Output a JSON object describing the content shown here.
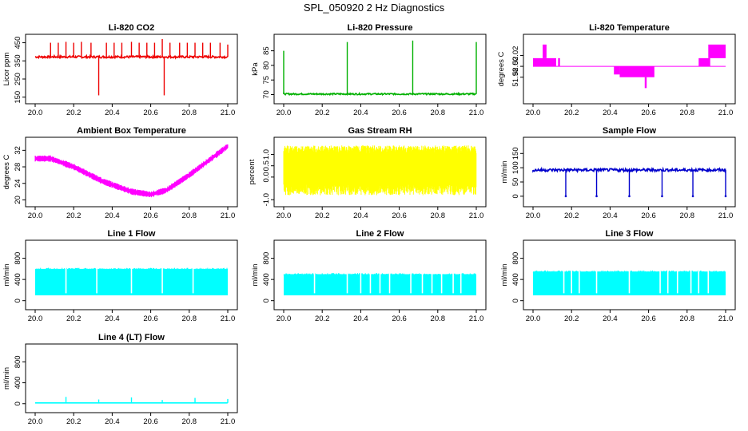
{
  "figure_title": "SPL_050920  2 Hz Diagnostics",
  "chart_data": [
    {
      "type": "line",
      "title": "Li-820 CO2",
      "ylabel": "Licor ppm",
      "color": "#ee0000",
      "xlim": [
        20.0,
        21.0
      ],
      "ylim": [
        140,
        470
      ],
      "x_ticks": [
        "20.0",
        "20.2",
        "20.4",
        "20.6",
        "20.8",
        "21.0"
      ],
      "y_ticks": [
        150,
        250,
        350,
        450
      ],
      "baseline": 372,
      "noise": 6,
      "spikes": [
        [
          20.08,
          450
        ],
        [
          20.12,
          450
        ],
        [
          20.16,
          455
        ],
        [
          20.2,
          450
        ],
        [
          20.24,
          455
        ],
        [
          20.29,
          450
        ],
        [
          20.33,
          160
        ],
        [
          20.37,
          450
        ],
        [
          20.41,
          450
        ],
        [
          20.45,
          450
        ],
        [
          20.5,
          455
        ],
        [
          20.54,
          450
        ],
        [
          20.58,
          450
        ],
        [
          20.62,
          450
        ],
        [
          20.66,
          470
        ],
        [
          20.67,
          160
        ],
        [
          20.7,
          450
        ],
        [
          20.75,
          450
        ],
        [
          20.79,
          450
        ],
        [
          20.83,
          450
        ],
        [
          20.87,
          450
        ],
        [
          20.91,
          450
        ],
        [
          20.96,
          450
        ],
        [
          21.0,
          440
        ]
      ]
    },
    {
      "type": "line",
      "title": "Li-820 Pressure",
      "ylabel": "kPa",
      "color": "#00b000",
      "xlim": [
        20.0,
        21.0
      ],
      "ylim": [
        68.5,
        89
      ],
      "x_ticks": [
        "20.0",
        "20.2",
        "20.4",
        "20.6",
        "20.8",
        "21.0"
      ],
      "y_ticks": [
        70,
        75,
        80,
        85
      ],
      "baseline": 70.2,
      "noise": 0.25,
      "spikes": [
        [
          20.0,
          85
        ],
        [
          20.33,
          88
        ],
        [
          20.67,
          88.5
        ],
        [
          21.0,
          88
        ]
      ]
    },
    {
      "type": "step",
      "title": "Li-820 Temperature",
      "ylabel": "degrees C",
      "color": "#ff00ff",
      "xlim": [
        20.0,
        21.0
      ],
      "ylim": [
        51.94,
        52.05
      ],
      "x_ticks": [
        "20.0",
        "20.2",
        "20.4",
        "20.6",
        "20.8",
        "21.0"
      ],
      "y_ticks": [
        51.98,
        52.0,
        52.02
      ],
      "y_tick_labels": [
        "51.98",
        "52.00",
        "52.02"
      ],
      "base_level": 52.0,
      "bands": [
        [
          20.0,
          20.12,
          52.0,
          52.015
        ],
        [
          20.05,
          20.07,
          52.015,
          52.04
        ],
        [
          20.13,
          20.14,
          52.0,
          52.015
        ],
        [
          20.42,
          20.45,
          51.985,
          52.0
        ],
        [
          20.45,
          20.63,
          51.98,
          52.0
        ],
        [
          20.58,
          20.59,
          51.96,
          51.98
        ],
        [
          20.86,
          20.92,
          52.0,
          52.015
        ],
        [
          20.91,
          21.0,
          52.015,
          52.04
        ]
      ]
    },
    {
      "type": "line",
      "title": "Ambient Box Temperature",
      "ylabel": "degrees C",
      "color": "#ff00ff",
      "xlim": [
        20.0,
        21.0
      ],
      "ylim": [
        19.5,
        34
      ],
      "x_ticks": [
        "20.0",
        "20.2",
        "20.4",
        "20.6",
        "20.8",
        "21.0"
      ],
      "y_ticks": [
        20,
        24,
        28,
        32
      ],
      "curve": [
        [
          20.0,
          30.0
        ],
        [
          20.08,
          30.0
        ],
        [
          20.2,
          28.0
        ],
        [
          20.35,
          24.5
        ],
        [
          20.5,
          22.0
        ],
        [
          20.6,
          21.3
        ],
        [
          20.68,
          22.3
        ],
        [
          20.8,
          26.0
        ],
        [
          20.9,
          29.5
        ],
        [
          21.0,
          33.0
        ]
      ],
      "band_half_width": 0.7
    },
    {
      "type": "line",
      "title": "Gas Stream RH",
      "ylabel": "percent",
      "color": "#ffff00",
      "xlim": [
        20.0,
        21.0
      ],
      "ylim": [
        -1.1,
        1.55
      ],
      "x_ticks": [
        "20.0",
        "20.2",
        "20.4",
        "20.6",
        "20.8",
        "21.0"
      ],
      "y_ticks": [
        -1.0,
        0.0,
        0.5,
        1.0
      ],
      "y_tick_labels": [
        "-1.0",
        "0.0",
        "0.5",
        "1.0"
      ],
      "low": -0.6,
      "high": 1.3
    },
    {
      "type": "line",
      "title": "Sample Flow",
      "ylabel": "ml/min",
      "color": "#0000cc",
      "xlim": [
        20.0,
        21.0
      ],
      "ylim": [
        -20,
        190
      ],
      "x_ticks": [
        "20.0",
        "20.2",
        "20.4",
        "20.6",
        "20.8",
        "21.0"
      ],
      "y_ticks": [
        0,
        50,
        100,
        150
      ],
      "baseline": 92,
      "noise": 5,
      "dips": [
        20.17,
        20.33,
        20.5,
        20.67,
        20.83,
        21.0
      ]
    },
    {
      "type": "area",
      "title": "Line 1 Flow",
      "ylabel": "ml/min",
      "color": "#00ffff",
      "xlim": [
        20.0,
        21.0
      ],
      "ylim": [
        -80,
        1050
      ],
      "x_ticks": [
        "20.0",
        "20.2",
        "20.4",
        "20.6",
        "20.8",
        "21.0"
      ],
      "y_ticks": [
        0,
        400,
        800
      ],
      "low": 100,
      "high": 600,
      "gaps": [
        20.16,
        20.32,
        20.5,
        20.66,
        20.82
      ]
    },
    {
      "type": "area",
      "title": "Line 2 Flow",
      "ylabel": "ml/min",
      "color": "#00ffff",
      "xlim": [
        20.0,
        21.0
      ],
      "ylim": [
        -80,
        1050
      ],
      "x_ticks": [
        "20.0",
        "20.2",
        "20.4",
        "20.6",
        "20.8",
        "21.0"
      ],
      "y_ticks": [
        0,
        400,
        800
      ],
      "low": 100,
      "high": 500,
      "gaps": [
        20.16,
        20.33,
        20.4,
        20.45,
        20.5,
        20.55,
        20.66,
        20.72,
        20.77,
        20.82,
        20.88,
        20.92
      ]
    },
    {
      "type": "area",
      "title": "Line 3 Flow",
      "ylabel": "ml/min",
      "color": "#00ffff",
      "xlim": [
        20.0,
        21.0
      ],
      "ylim": [
        -80,
        1050
      ],
      "x_ticks": [
        "20.0",
        "20.2",
        "20.4",
        "20.6",
        "20.8",
        "21.0"
      ],
      "y_ticks": [
        0,
        400,
        800
      ],
      "low": 100,
      "high": 550,
      "gaps": [
        20.16,
        20.2,
        20.24,
        20.33,
        20.5,
        20.66,
        20.7,
        20.75,
        20.82,
        20.86,
        20.91
      ]
    },
    {
      "type": "line",
      "title": "Line 4 (LT) Flow",
      "ylabel": "ml/min",
      "color": "#00ffff",
      "xlim": [
        20.0,
        21.0
      ],
      "ylim": [
        -80,
        1050
      ],
      "x_ticks": [
        "20.0",
        "20.2",
        "20.4",
        "20.6",
        "20.8",
        "21.0"
      ],
      "y_ticks": [
        0,
        400,
        800
      ],
      "baseline": 15,
      "spikes": [
        [
          20.16,
          130
        ],
        [
          20.33,
          80
        ],
        [
          20.5,
          120
        ],
        [
          20.66,
          70
        ],
        [
          20.83,
          110
        ],
        [
          21.0,
          90
        ]
      ]
    }
  ]
}
